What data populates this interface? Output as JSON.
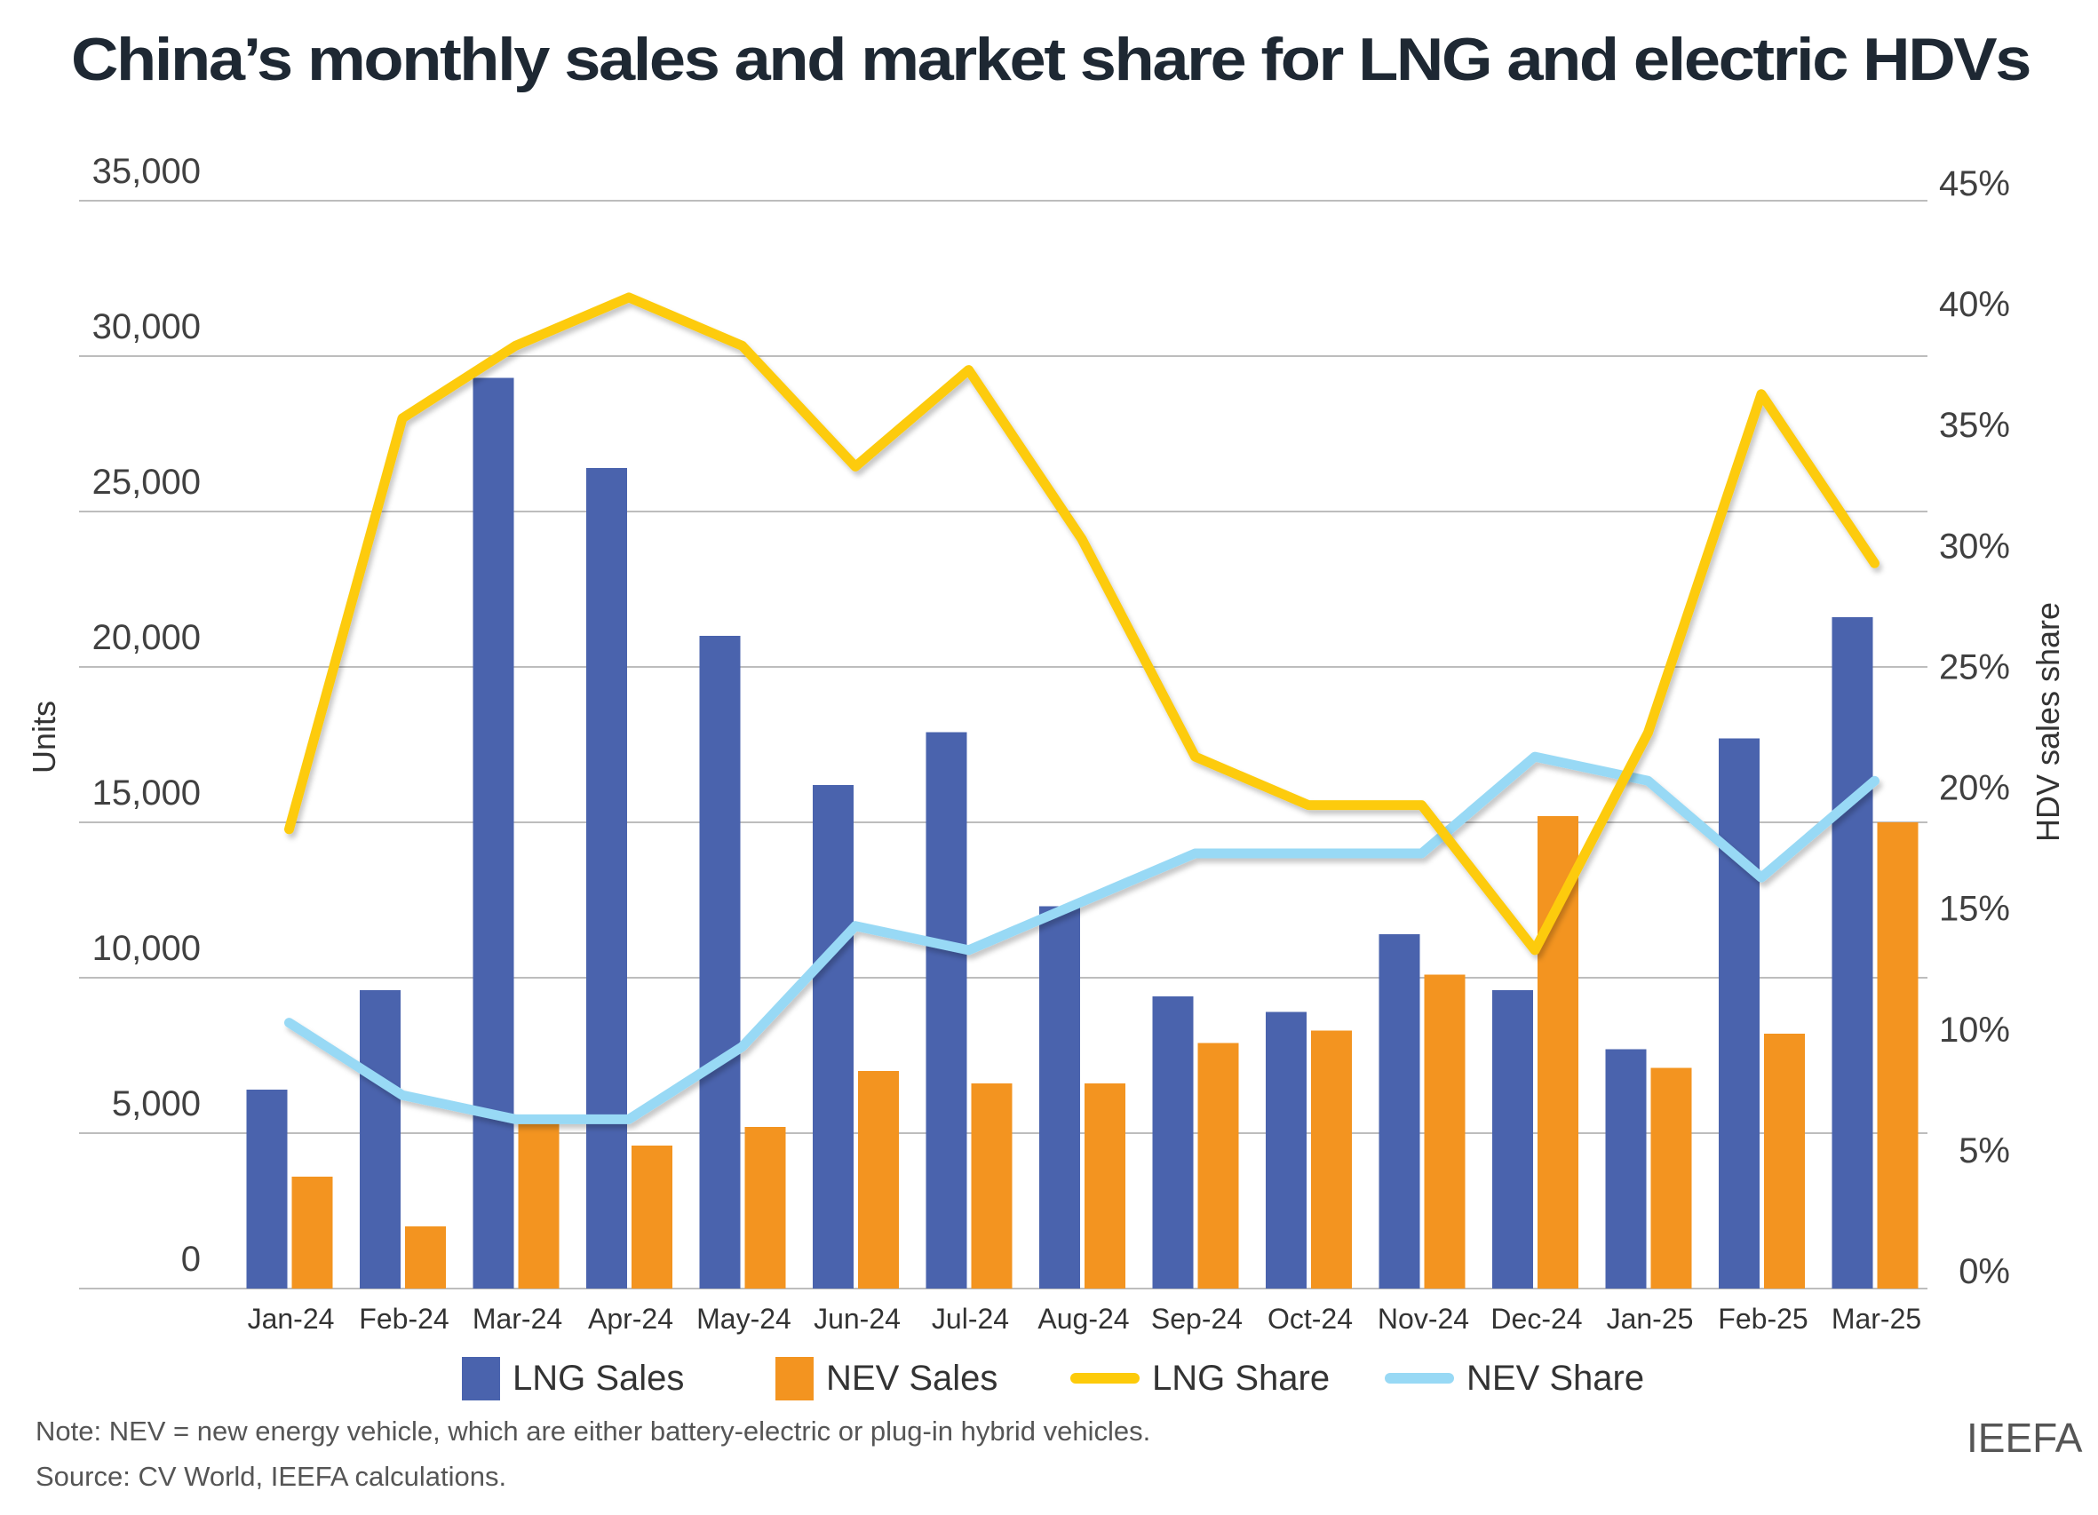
{
  "title": "China’s monthly sales and market share for LNG and electric HDVs",
  "legend": {
    "lng_sales": "LNG Sales",
    "nev_sales": "NEV Sales",
    "lng_share": "LNG Share",
    "nev_share": "NEV Share"
  },
  "footer": {
    "note": "Note: NEV = new energy vehicle, which are either battery-electric or plug-in hybrid vehicles.",
    "source": "Source: CV World, IEEFA calculations.",
    "logo": "IEEFA"
  },
  "colors": {
    "lng_sales": "#4a63ad",
    "nev_sales": "#f39420",
    "lng_share": "#fdcb0a",
    "nev_share": "#98d9f5",
    "grid": "#bdbdbd"
  },
  "chart_data": {
    "type": "bar",
    "title": "China’s monthly sales and market share for LNG and electric HDVs",
    "xlabel": "",
    "ylabel": "Units",
    "y2label": "HDV sales share",
    "ylim": [
      0,
      35000
    ],
    "y2lim": [
      0,
      45
    ],
    "grid": true,
    "legend_position": "bottom",
    "yticks": [
      "0",
      "5,000",
      "10,000",
      "15,000",
      "20,000",
      "25,000",
      "30,000",
      "35,000"
    ],
    "y2ticks": [
      "0%",
      "5%",
      "10%",
      "15%",
      "20%",
      "25%",
      "30%",
      "35%",
      "40%",
      "45%"
    ],
    "categories": [
      "Jan-24",
      "Feb-24",
      "Mar-24",
      "Apr-24",
      "May-24",
      "Jun-24",
      "Jul-24",
      "Aug-24",
      "Sep-24",
      "Oct-24",
      "Nov-24",
      "Dec-24",
      "Jan-25",
      "Feb-25",
      "Mar-25"
    ],
    "series": [
      {
        "name": "LNG Sales",
        "type": "bar",
        "axis": "left",
        "values": [
          6400,
          9600,
          29300,
          26400,
          21000,
          16200,
          17900,
          12300,
          9400,
          8900,
          11400,
          9600,
          7700,
          17700,
          21600
        ]
      },
      {
        "name": "NEV Sales",
        "type": "bar",
        "axis": "left",
        "values": [
          3600,
          2000,
          5300,
          4600,
          5200,
          7000,
          6600,
          6600,
          7900,
          8300,
          10100,
          15200,
          7100,
          8200,
          15000
        ]
      },
      {
        "name": "LNG Share",
        "type": "line",
        "axis": "right",
        "unit": "%",
        "values": [
          19,
          36,
          39,
          41,
          39,
          34,
          38,
          31,
          22,
          20,
          20,
          14,
          23,
          37,
          30
        ]
      },
      {
        "name": "NEV Share",
        "type": "line",
        "axis": "right",
        "unit": "%",
        "values": [
          11,
          8,
          7,
          7,
          10,
          15,
          14,
          16,
          18,
          18,
          18,
          22,
          21,
          17,
          21
        ]
      }
    ]
  }
}
